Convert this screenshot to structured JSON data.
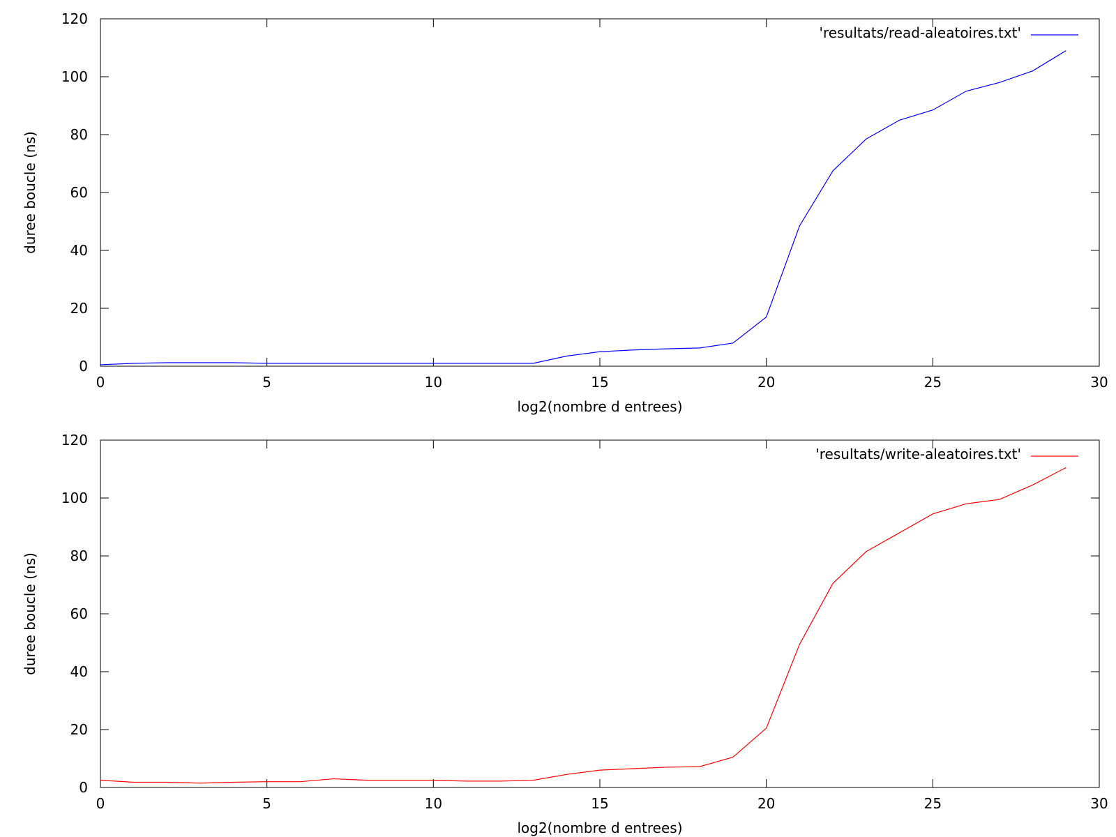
{
  "chart_data": [
    {
      "type": "line",
      "xlabel": "log2(nombre d entrees)",
      "ylabel": "duree boucle (ns)",
      "xlim": [
        0,
        30
      ],
      "ylim": [
        0,
        120
      ],
      "xticks": [
        0,
        5,
        10,
        15,
        20,
        25,
        30
      ],
      "yticks": [
        0,
        20,
        40,
        60,
        80,
        100,
        120
      ],
      "grid": false,
      "legend_position": "top-right",
      "series": [
        {
          "name": "'resultats/read-aleatoires.txt'",
          "color": "#0000ff",
          "x": [
            0,
            1,
            2,
            3,
            4,
            5,
            6,
            7,
            8,
            9,
            10,
            11,
            12,
            13,
            14,
            15,
            16,
            17,
            18,
            19,
            20,
            21,
            22,
            23,
            24,
            25,
            26,
            27,
            28,
            29
          ],
          "y": [
            0.5,
            1.0,
            1.2,
            1.2,
            1.2,
            1.0,
            1.0,
            1.0,
            1.0,
            1.0,
            1.0,
            1.0,
            1.0,
            1.0,
            3.5,
            5.0,
            5.6,
            6.0,
            6.3,
            8.0,
            17.0,
            48.5,
            67.5,
            78.5,
            85.0,
            88.5,
            95.0,
            98.0,
            102.0,
            109.0
          ]
        }
      ]
    },
    {
      "type": "line",
      "xlabel": "log2(nombre d entrees)",
      "ylabel": "duree boucle (ns)",
      "xlim": [
        0,
        30
      ],
      "ylim": [
        0,
        120
      ],
      "xticks": [
        0,
        5,
        10,
        15,
        20,
        25,
        30
      ],
      "yticks": [
        0,
        20,
        40,
        60,
        80,
        100,
        120
      ],
      "grid": false,
      "legend_position": "top-right",
      "series": [
        {
          "name": "'resultats/write-aleatoires.txt'",
          "color": "#ff0000",
          "x": [
            0,
            1,
            2,
            3,
            4,
            5,
            6,
            7,
            8,
            9,
            10,
            11,
            12,
            13,
            14,
            15,
            16,
            17,
            18,
            19,
            20,
            21,
            22,
            23,
            24,
            25,
            26,
            27,
            28,
            29
          ],
          "y": [
            2.5,
            1.8,
            1.8,
            1.5,
            1.8,
            2.0,
            2.0,
            3.0,
            2.5,
            2.5,
            2.5,
            2.2,
            2.2,
            2.5,
            4.5,
            6.0,
            6.5,
            7.0,
            7.2,
            10.5,
            20.5,
            49.5,
            70.5,
            81.5,
            88.0,
            94.5,
            98.0,
            99.5,
            104.5,
            110.5
          ]
        }
      ]
    }
  ]
}
